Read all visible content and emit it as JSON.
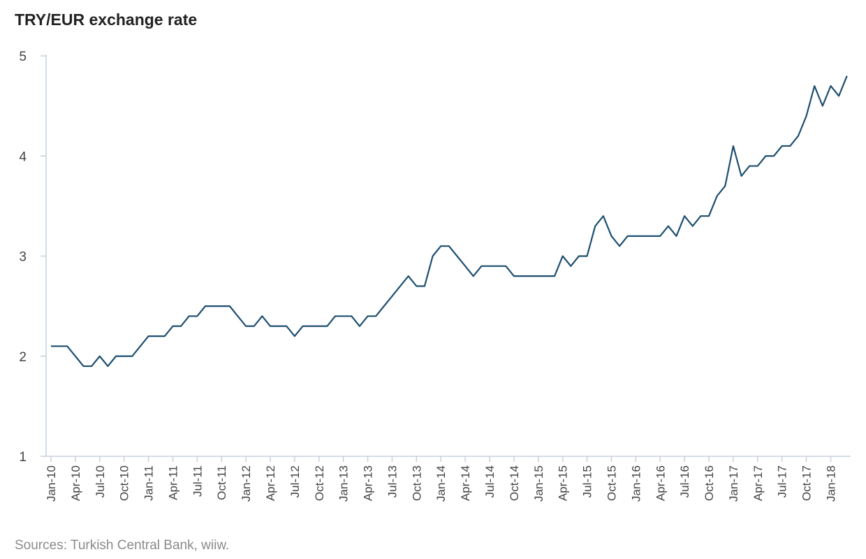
{
  "chart_data": {
    "type": "line",
    "title": "TRY/EUR exchange rate",
    "source": "Sources: Turkish Central Bank, wiiw.",
    "xlabel": "",
    "ylabel": "",
    "ylim": [
      1,
      5
    ],
    "yticks": [
      1,
      2,
      3,
      4,
      5
    ],
    "grid": false,
    "line_color": "#1d4e6f",
    "axis_color": "#c5d0df",
    "x_tick_labels": [
      "Jan-10",
      "Apr-10",
      "Jul-10",
      "Oct-10",
      "Jan-11",
      "Apr-11",
      "Jul-11",
      "Oct-11",
      "Jan-12",
      "Apr-12",
      "Jul-12",
      "Oct-12",
      "Jan-13",
      "Apr-13",
      "Jul-13",
      "Oct-13",
      "Jan-14",
      "Apr-14",
      "Jul-14",
      "Oct-14",
      "Jan-15",
      "Apr-15",
      "Jul-15",
      "Oct-15",
      "Jan-16",
      "Apr-16",
      "Jul-16",
      "Oct-16",
      "Jan-17",
      "Apr-17",
      "Jul-17",
      "Oct-17",
      "Jan-18"
    ],
    "series": [
      {
        "start": "Jan-10",
        "frequency": "monthly",
        "values": [
          2.1,
          2.1,
          2.1,
          2.0,
          1.9,
          1.9,
          2.0,
          1.9,
          2.0,
          2.0,
          2.0,
          2.1,
          2.2,
          2.2,
          2.2,
          2.3,
          2.3,
          2.4,
          2.4,
          2.5,
          2.5,
          2.5,
          2.5,
          2.4,
          2.3,
          2.3,
          2.4,
          2.3,
          2.3,
          2.3,
          2.2,
          2.3,
          2.3,
          2.3,
          2.3,
          2.4,
          2.4,
          2.4,
          2.3,
          2.4,
          2.4,
          2.5,
          2.6,
          2.7,
          2.8,
          2.7,
          2.7,
          3.0,
          3.1,
          3.1,
          3.0,
          2.9,
          2.8,
          2.9,
          2.9,
          2.9,
          2.9,
          2.8,
          2.8,
          2.8,
          2.8,
          2.8,
          2.8,
          3.0,
          2.9,
          3.0,
          3.0,
          3.3,
          3.4,
          3.2,
          3.1,
          3.2,
          3.2,
          3.2,
          3.2,
          3.2,
          3.3,
          3.2,
          3.4,
          3.3,
          3.4,
          3.4,
          3.6,
          3.7,
          4.1,
          3.8,
          3.9,
          3.9,
          4.0,
          4.0,
          4.1,
          4.1,
          4.2,
          4.4,
          4.7,
          4.5,
          4.7,
          4.6,
          4.8
        ]
      }
    ]
  }
}
